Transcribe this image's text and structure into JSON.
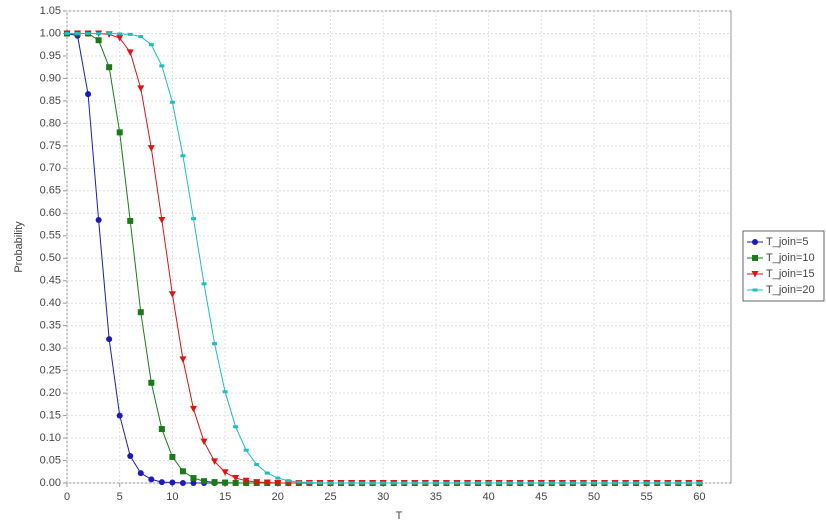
{
  "chart_data": {
    "type": "line",
    "x_label": "T",
    "y_label": "Probability",
    "xlim": [
      0,
      63
    ],
    "ylim": [
      0,
      1.05
    ],
    "xticks": [
      0,
      5,
      10,
      15,
      20,
      25,
      30,
      35,
      40,
      45,
      50,
      55,
      60
    ],
    "yticks": [
      {
        "value": 0,
        "label": "0.00"
      },
      0.05,
      {
        "value": 0.1,
        "label": "0.10"
      },
      0.15,
      {
        "value": 0.2,
        "label": "0.20"
      },
      0.25,
      {
        "value": 0.3,
        "label": "0.30"
      },
      0.35,
      {
        "value": 0.4,
        "label": "0.40"
      },
      0.45,
      {
        "value": 0.5,
        "label": "0.50"
      },
      0.55,
      {
        "value": 0.6,
        "label": "0.60"
      },
      0.65,
      {
        "value": 0.7,
        "label": "0.70"
      },
      0.75,
      {
        "value": 0.8,
        "label": "0.80"
      },
      0.85,
      {
        "value": 0.9,
        "label": "0.90"
      },
      0.95,
      {
        "value": 1,
        "label": "1.00"
      },
      1.05
    ],
    "grid": true,
    "legend": "right",
    "x": [
      0,
      1,
      2,
      3,
      4,
      5,
      6,
      7,
      8,
      9,
      10,
      11,
      12,
      13,
      14,
      15,
      16,
      17,
      18,
      19,
      20,
      21,
      22,
      23,
      24,
      25,
      26,
      27,
      28,
      29,
      30,
      31,
      32,
      33,
      34,
      35,
      36,
      37,
      38,
      39,
      40,
      41,
      42,
      43,
      44,
      45,
      46,
      47,
      48,
      49,
      50,
      51,
      52,
      53,
      54,
      55,
      56,
      57,
      58,
      59,
      60
    ],
    "series": [
      {
        "name": "T_join=5",
        "color": "#1c1cb4",
        "marker": "circle",
        "values": [
          1,
          0.995,
          0.865,
          0.585,
          0.32,
          0.15,
          0.06,
          0.022,
          0.008,
          0.002,
          0.001,
          0,
          0,
          0,
          0,
          0,
          0,
          0,
          0,
          0,
          0,
          0,
          0,
          0,
          0,
          0,
          0,
          0,
          0,
          0,
          0,
          0,
          0,
          0,
          0,
          0,
          0,
          0,
          0,
          0,
          0,
          0,
          0,
          0,
          0,
          0,
          0,
          0,
          0,
          0,
          0,
          0,
          0,
          0,
          0,
          0,
          0,
          0,
          0,
          0,
          0
        ]
      },
      {
        "name": "T_join=10",
        "color": "#1a7a1a",
        "marker": "square",
        "values": [
          1,
          1,
          1,
          0.985,
          0.925,
          0.78,
          0.583,
          0.38,
          0.223,
          0.12,
          0.058,
          0.026,
          0.011,
          0.004,
          0.002,
          0.001,
          0,
          0,
          0,
          0,
          0,
          0,
          0,
          0,
          0,
          0,
          0,
          0,
          0,
          0,
          0,
          0,
          0,
          0,
          0,
          0,
          0,
          0,
          0,
          0,
          0,
          0,
          0,
          0,
          0,
          0,
          0,
          0,
          0,
          0,
          0,
          0,
          0,
          0,
          0,
          0,
          0,
          0,
          0,
          0,
          0
        ]
      },
      {
        "name": "T_join=15",
        "color": "#dc1414",
        "marker": "triangle-down",
        "values": [
          1,
          1,
          1,
          1,
          0.998,
          0.99,
          0.958,
          0.878,
          0.745,
          0.585,
          0.42,
          0.275,
          0.165,
          0.092,
          0.048,
          0.024,
          0.011,
          0.005,
          0.002,
          0.001,
          0,
          0,
          0,
          0,
          0,
          0,
          0,
          0,
          0,
          0,
          0,
          0,
          0,
          0,
          0,
          0,
          0,
          0,
          0,
          0,
          0,
          0,
          0,
          0,
          0,
          0,
          0,
          0,
          0,
          0,
          0,
          0,
          0,
          0,
          0,
          0,
          0,
          0,
          0,
          0,
          0
        ]
      },
      {
        "name": "T_join=20",
        "color": "#22bcbc",
        "marker": "small-square",
        "values": [
          1,
          1,
          1,
          1,
          1,
          0.999,
          0.998,
          0.993,
          0.975,
          0.928,
          0.847,
          0.728,
          0.588,
          0.443,
          0.31,
          0.203,
          0.125,
          0.073,
          0.041,
          0.022,
          0.011,
          0.005,
          0.002,
          0.001,
          0,
          0,
          0,
          0,
          0,
          0,
          0,
          0,
          0,
          0,
          0,
          0,
          0,
          0,
          0,
          0,
          0,
          0,
          0,
          0,
          0,
          0,
          0,
          0,
          0,
          0,
          0,
          0,
          0,
          0,
          0,
          0,
          0,
          0,
          0,
          0,
          0
        ]
      }
    ]
  }
}
